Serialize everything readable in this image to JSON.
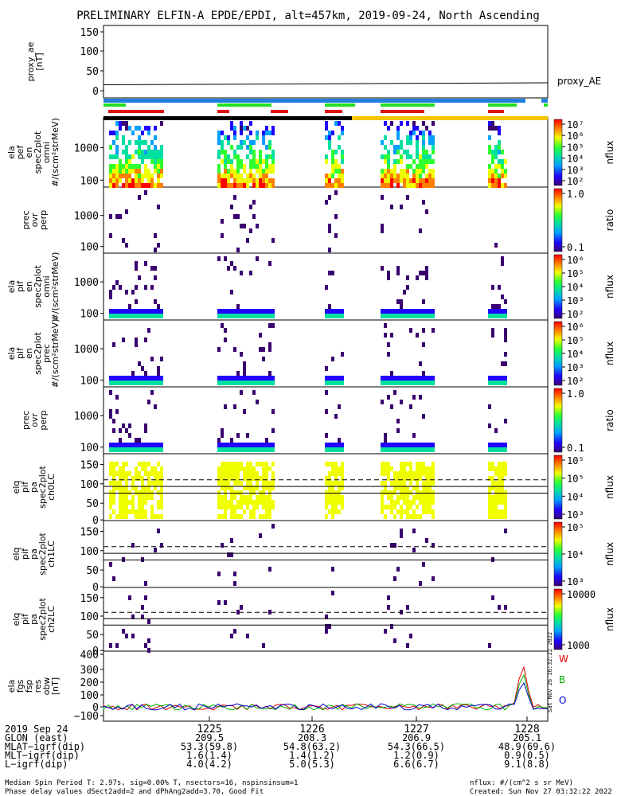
{
  "title": "PRELIMINARY ELFIN-A EPDE/EPDI, alt=457km, 2019-09-24, North Ascending",
  "chart_data": {
    "type": "spectrogram-stack",
    "panels": [
      {
        "id": "proxy_ae",
        "ylabel": [
          "proxy_ae",
          "[nT]"
        ],
        "yticks": [
          "150",
          "100",
          "50",
          "0"
        ],
        "legend": "proxy_AE",
        "proxy_ae_values": [
          15,
          16,
          17,
          18,
          19,
          20
        ]
      },
      {
        "id": "p1",
        "ylabel": [
          "ela",
          "pef",
          "en",
          "spec2plot",
          "omni",
          "#/(scm²strMeV)"
        ],
        "yticks": [
          "1000",
          "100"
        ],
        "colorbar": {
          "label": "nflux",
          "ticks": [
            "10⁷",
            "10⁶",
            "10⁵",
            "10⁴",
            "10³",
            "10²"
          ]
        }
      },
      {
        "id": "p2",
        "ylabel": [
          "prec",
          "ovr",
          "perp"
        ],
        "yticks": [
          "1000",
          "100"
        ],
        "colorbar": {
          "label": "ratio",
          "ticks": [
            "1.0",
            "0.1"
          ]
        }
      },
      {
        "id": "p3",
        "ylabel": [
          "ela",
          "pif",
          "en",
          "spec2plot",
          "omni",
          "#/(scm²strMeV)"
        ],
        "yticks": [
          "1000",
          "100"
        ],
        "colorbar": {
          "label": "nflux",
          "ticks": [
            "10⁶",
            "10⁵",
            "10⁴",
            "10³",
            "10²"
          ]
        }
      },
      {
        "id": "p4",
        "ylabel": [
          "ela",
          "pif",
          "en",
          "spec2plot",
          "prec",
          "#/(scm²strMeV)"
        ],
        "yticks": [
          "1000",
          "100"
        ],
        "colorbar": {
          "label": "nflux",
          "ticks": [
            "10⁶",
            "10⁵",
            "10⁴",
            "10³",
            "10²"
          ]
        }
      },
      {
        "id": "p5",
        "ylabel": [
          "prec",
          "ovr",
          "perp"
        ],
        "yticks": [
          "1000",
          "100"
        ],
        "colorbar": {
          "label": "ratio",
          "ticks": [
            "1.0",
            "0.1"
          ]
        }
      },
      {
        "id": "p6",
        "ylabel": [
          "elq",
          "pif",
          "pa",
          "spec2plot",
          "ch0LC"
        ],
        "yticks": [
          "150",
          "100",
          "50",
          "0"
        ],
        "colorbar": {
          "label": "nflux",
          "ticks": [
            "10⁵",
            "10⁵",
            "10⁴",
            "10³"
          ]
        }
      },
      {
        "id": "p7",
        "ylabel": [
          "elq",
          "pif",
          "pa",
          "spec2plot",
          "ch1LC"
        ],
        "yticks": [
          "150",
          "100",
          "50",
          "0"
        ],
        "colorbar": {
          "label": "nflux",
          "ticks": [
            "10⁵",
            "10⁴",
            "10³"
          ]
        }
      },
      {
        "id": "p8",
        "ylabel": [
          "elq",
          "pif",
          "pa",
          "spec2plot",
          "ch2LC"
        ],
        "yticks": [
          "150",
          "100",
          "50",
          "0"
        ],
        "colorbar": {
          "label": "nflux",
          "ticks": [
            "10000",
            "1000"
          ]
        }
      },
      {
        "id": "p9",
        "ylabel": [
          "ela",
          "fgs",
          "fsp",
          "res",
          "obw",
          "[nT]"
        ],
        "yticks": [
          "400",
          "300",
          "200",
          "100",
          "0",
          "−100"
        ],
        "legend": [
          "W",
          "B",
          "O"
        ],
        "legend_colors": [
          "#e00000",
          "#00b000",
          "#0000d0"
        ]
      }
    ],
    "x_ticks": [
      "1225",
      "1226",
      "1227",
      "1228"
    ],
    "x_tick_rows": {
      "label_col": [
        "2019 Sep 24",
        "GLON (east)",
        "MLAT−igrf(dip)",
        "MLT−igrf(dip)",
        "L−igrf(dip)"
      ],
      "GLON": [
        "209.5",
        "208.3",
        "206.9",
        "205.1"
      ],
      "MLAT": [
        "53.3(59.8)",
        "54.8(63.2)",
        "54.3(66.5)",
        "48.9(69.6)"
      ],
      "MLT": [
        "1.6(1.4)",
        "1.4(1.2)",
        "1.2(0.9)",
        "0.9(0.5)"
      ],
      "L": [
        "4.0(4.2)",
        "5.0(5.3)",
        "6.6(6.7)",
        "9.1(8.8)"
      ]
    },
    "colors": {
      "blue_bar": "#1e7fe0",
      "green": "#22e022",
      "red": "#e01010",
      "black": "#000000",
      "yellow": "#f5c400"
    }
  },
  "footer": {
    "line1_left": "Median Spin Period T: 2.97s, sig=0.00% T, nsectors=16, nspinsinsum=1",
    "line2_left": "Phase delay values dSect2add=2 and dPhAng2add=3.70, Good Fit",
    "line1_right": "nflux: #/(cm^2 s sr MeV)",
    "line2_right": "Created: Sun Nov 27 03:32:22 2022",
    "vertical_stamp": "Sat Nov 26 16:32:22 2022"
  }
}
